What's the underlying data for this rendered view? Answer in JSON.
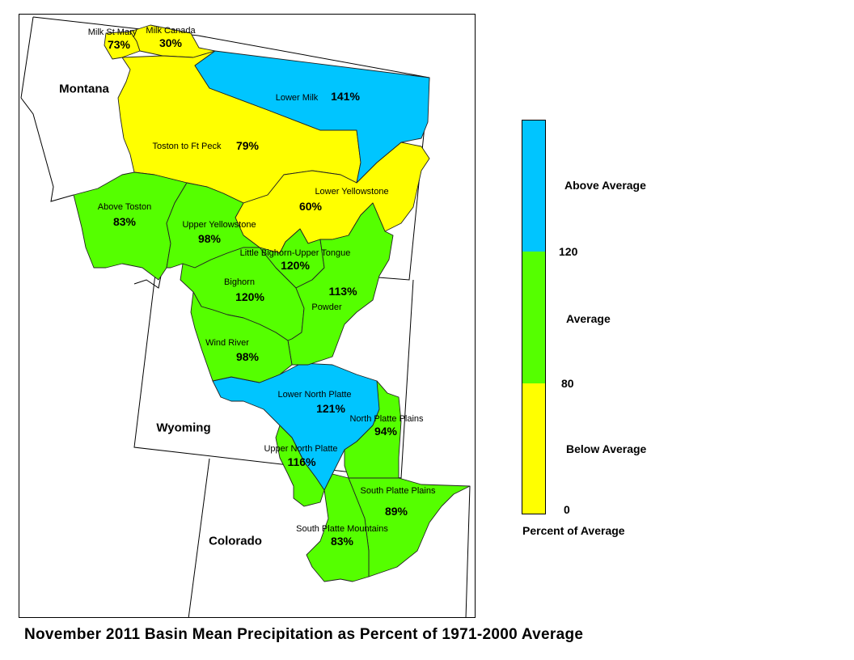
{
  "title": "November 2011 Basin Mean Precipitation as Percent of 1971-2000 Average",
  "states": {
    "montana": "Montana",
    "wyoming": "Wyoming",
    "colorado": "Colorado"
  },
  "colors": {
    "above": "#00c5ff",
    "average": "#55ff00",
    "below": "#ffff00"
  },
  "basins": [
    {
      "id": "milk-st-mary",
      "name": "Milk St Mary",
      "pct": "73%",
      "value": 73,
      "category": "below"
    },
    {
      "id": "milk-canada",
      "name": "Milk Canada",
      "pct": "30%",
      "value": 30,
      "category": "below"
    },
    {
      "id": "lower-milk",
      "name": "Lower Milk",
      "pct": "141%",
      "value": 141,
      "category": "above"
    },
    {
      "id": "toston-to-ft-peck",
      "name": "Toston to Ft Peck",
      "pct": "79%",
      "value": 79,
      "category": "below"
    },
    {
      "id": "lower-yellowstone",
      "name": "Lower Yellowstone",
      "pct": "60%",
      "value": 60,
      "category": "below"
    },
    {
      "id": "above-toston",
      "name": "Above Toston",
      "pct": "83%",
      "value": 83,
      "category": "average"
    },
    {
      "id": "upper-yellowstone",
      "name": "Upper Yellowstone",
      "pct": "98%",
      "value": 98,
      "category": "average"
    },
    {
      "id": "little-bighorn-upper-tongue",
      "name": "Little Bighorn-Upper Tongue",
      "pct": "120%",
      "value": 120,
      "category": "average"
    },
    {
      "id": "bighorn",
      "name": "Bighorn",
      "pct": "120%",
      "value": 120,
      "category": "average"
    },
    {
      "id": "powder",
      "name": "Powder",
      "pct": "113%",
      "value": 113,
      "category": "average"
    },
    {
      "id": "wind-river",
      "name": "Wind River",
      "pct": "98%",
      "value": 98,
      "category": "average"
    },
    {
      "id": "lower-north-platte",
      "name": "Lower North Platte",
      "pct": "121%",
      "value": 121,
      "category": "above"
    },
    {
      "id": "north-platte-plains",
      "name": "North Platte Plains",
      "pct": "94%",
      "value": 94,
      "category": "average"
    },
    {
      "id": "upper-north-platte",
      "name": "Upper North Platte",
      "pct": "116%",
      "value": 116,
      "category": "average"
    },
    {
      "id": "south-platte-plains",
      "name": "South Platte Plains",
      "pct": "89%",
      "value": 89,
      "category": "average"
    },
    {
      "id": "south-platte-mountains",
      "name": "South Platte Mountains",
      "pct": "83%",
      "value": 83,
      "category": "average"
    }
  ],
  "legend": {
    "above_label": "Above Average",
    "average_label": "Average",
    "below_label": "Below Average",
    "tick_120": "120",
    "tick_80": "80",
    "tick_0": "0",
    "caption": "Percent of Average"
  }
}
